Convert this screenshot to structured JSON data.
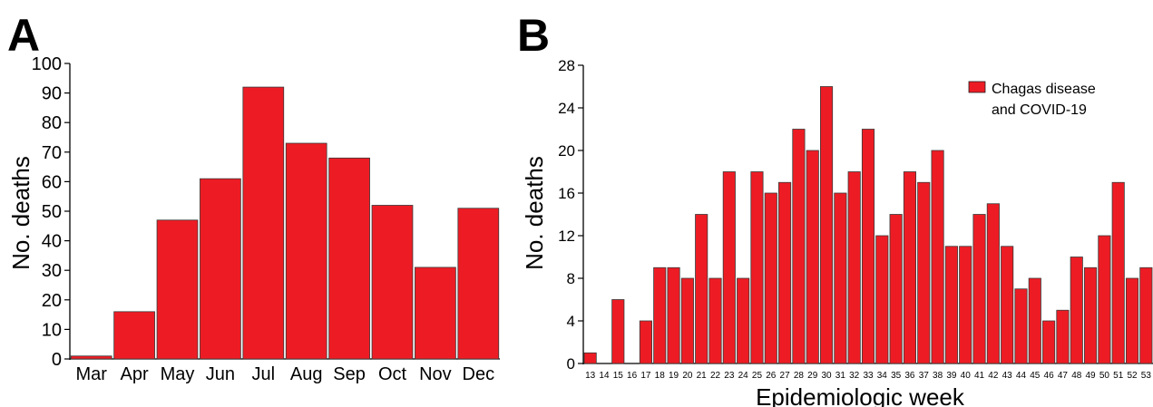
{
  "panels": {
    "a": {
      "letter": "A"
    },
    "b": {
      "letter": "B"
    }
  },
  "chart_data": [
    {
      "type": "bar",
      "ylabel": "No. deaths",
      "xlabel": "",
      "categories": [
        "Mar",
        "Apr",
        "May",
        "Jun",
        "Jul",
        "Aug",
        "Sep",
        "Oct",
        "Nov",
        "Dec"
      ],
      "values": [
        1,
        16,
        47,
        61,
        92,
        73,
        68,
        52,
        31,
        51
      ],
      "ylim": [
        0,
        100
      ],
      "yticks": [
        0,
        10,
        20,
        30,
        40,
        50,
        60,
        70,
        80,
        90,
        100
      ],
      "color": "#ed1c24",
      "grid": false
    },
    {
      "type": "bar",
      "ylabel": "No. deaths",
      "xlabel": "Epidemiologic week",
      "categories": [
        "13",
        "14",
        "15",
        "16",
        "17",
        "18",
        "19",
        "20",
        "21",
        "22",
        "23",
        "24",
        "25",
        "26",
        "27",
        "28",
        "29",
        "30",
        "31",
        "32",
        "33",
        "34",
        "35",
        "36",
        "37",
        "38",
        "39",
        "40",
        "41",
        "42",
        "43",
        "44",
        "45",
        "46",
        "47",
        "48",
        "49",
        "50",
        "51",
        "52",
        "53"
      ],
      "values": [
        1,
        0,
        6,
        0,
        4,
        9,
        9,
        8,
        14,
        8,
        18,
        8,
        18,
        16,
        17,
        22,
        20,
        26,
        16,
        18,
        22,
        12,
        14,
        18,
        17,
        20,
        11,
        11,
        14,
        15,
        11,
        7,
        8,
        4,
        5,
        10,
        9,
        12,
        17,
        8,
        9
      ],
      "ylim": [
        0,
        28
      ],
      "yticks": [
        0,
        4,
        8,
        12,
        16,
        20,
        24,
        28
      ],
      "legend": {
        "label_lines": [
          "Chagas disease",
          "and COVID-19"
        ],
        "position": "top-right"
      },
      "color": "#ed1c24",
      "grid": false
    }
  ]
}
